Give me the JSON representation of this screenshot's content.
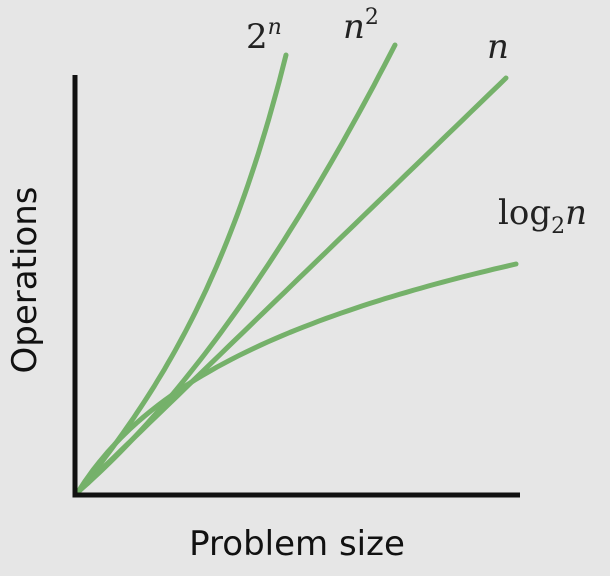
{
  "chart_data": {
    "type": "line",
    "xlabel": "Problem size",
    "ylabel": "Operations",
    "title": "",
    "series": [
      {
        "name": "2^n",
        "label_base": "2",
        "label_sup": "n",
        "label_sub": "",
        "kind": "exp"
      },
      {
        "name": "n^2",
        "label_base": "n",
        "label_sup": "2",
        "label_sub": "",
        "kind": "quad"
      },
      {
        "name": "n",
        "label_base": "n",
        "label_sup": "",
        "label_sub": "",
        "kind": "linear"
      },
      {
        "name": "log_2 n",
        "label_base": "log",
        "label_sup": "",
        "label_sub": "2",
        "label_tail": "n",
        "kind": "log"
      }
    ],
    "grid": false,
    "legend": "direct labels at line ends"
  },
  "colors": {
    "line": "#75b16a",
    "axis": "#111111",
    "background": "#e6e6e6"
  }
}
